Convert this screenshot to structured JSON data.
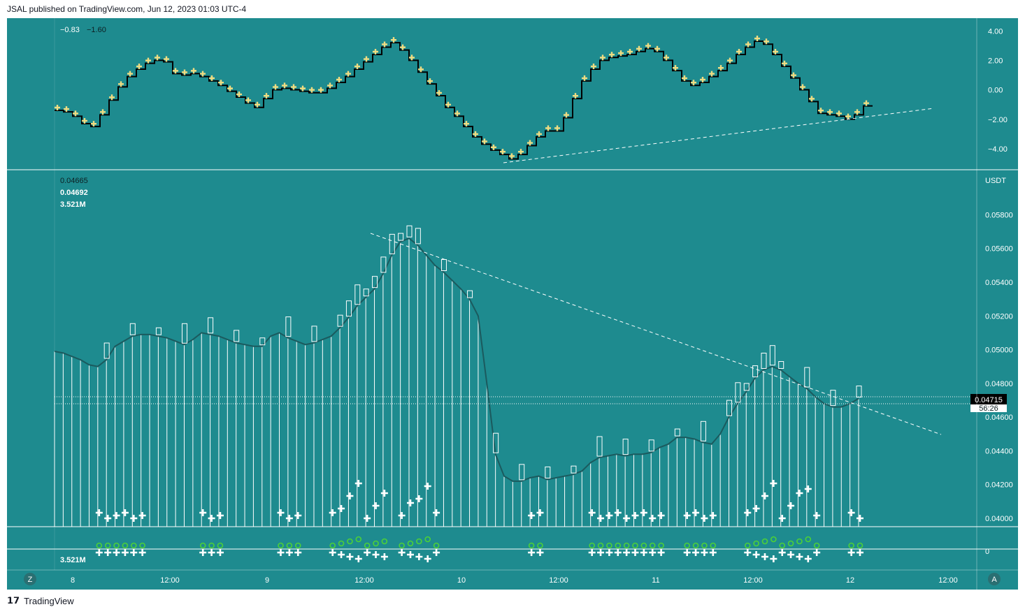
{
  "header": {
    "published": "JSAL published on TradingView.com, Jun 12, 2023 01:03 UTC-4"
  },
  "footer": {
    "brand": "TradingView"
  },
  "top_panel": {
    "values": [
      "−0.83",
      "−1.60"
    ],
    "axis_ticks": [
      "4.00",
      "2.00",
      "0.00",
      "−2.00",
      "−4.00"
    ]
  },
  "main_panel": {
    "legend": [
      "0.04665",
      "0.04692",
      "3.521M"
    ],
    "currency": "USDT",
    "axis_ticks": [
      "0.05800",
      "0.05600",
      "0.05400",
      "0.05200",
      "0.05000",
      "0.04800",
      "0.04600",
      "0.04400",
      "0.04200",
      "0.04000"
    ],
    "last_price": "0.04715",
    "countdown": "56:26"
  },
  "volume_panel": {
    "legend": "3.521M",
    "axis_tick": "0"
  },
  "x_axis": {
    "ticks": [
      "8",
      "12:00",
      "9",
      "12:00",
      "10",
      "12:00",
      "11",
      "12:00",
      "12",
      "12:00"
    ]
  },
  "buttons": {
    "left": "Z",
    "right": "A"
  },
  "colors": {
    "background": "#1e8b8f",
    "candle": "#ffffff",
    "ma_line": "#1b5a5e",
    "cross": "#f0dc82",
    "circle": "#4cd137"
  },
  "chart_data": [
    {
      "type": "line",
      "title": "",
      "ylim": [
        -5,
        4.5
      ],
      "series": [
        {
          "values": [
            -1.2,
            -1.3,
            -1.6,
            -2.1,
            -2.3,
            -1.5,
            -0.5,
            0.4,
            1.1,
            1.6,
            2.0,
            2.2,
            2.1,
            1.3,
            1.2,
            1.3,
            1.1,
            0.8,
            0.5,
            0.1,
            -0.3,
            -0.7,
            -1.0,
            -0.4,
            0.2,
            0.3,
            0.2,
            0.1,
            0.0,
            0.0,
            0.3,
            0.7,
            1.1,
            1.6,
            2.1,
            2.6,
            3.1,
            3.4,
            2.9,
            2.2,
            1.4,
            0.6,
            -0.2,
            -1.0,
            -1.6,
            -2.3,
            -3.0,
            -3.5,
            -3.9,
            -4.2,
            -4.5,
            -4.2,
            -3.6,
            -3.0,
            -2.6,
            -2.6,
            -1.7,
            -0.4,
            0.8,
            1.6,
            2.2,
            2.4,
            2.5,
            2.6,
            2.8,
            3.0,
            2.8,
            2.2,
            1.5,
            0.8,
            0.5,
            0.7,
            1.1,
            1.5,
            2.0,
            2.6,
            3.1,
            3.5,
            3.3,
            2.6,
            1.8,
            1.0,
            0.2,
            -0.6,
            -1.4,
            -1.5,
            -1.6,
            -1.8,
            -1.5,
            -0.9
          ]
        }
      ]
    },
    {
      "type": "bar",
      "title": "",
      "ylim": [
        0.0395,
        0.0598
      ],
      "values": [
        0.0499,
        0.0498,
        0.0496,
        0.0494,
        0.0491,
        0.049,
        0.0494,
        0.0502,
        0.0505,
        0.0508,
        0.0509,
        0.0509,
        0.0508,
        0.0507,
        0.0505,
        0.0503,
        0.0506,
        0.051,
        0.0509,
        0.0508,
        0.0506,
        0.0504,
        0.0503,
        0.0502,
        0.0502,
        0.0508,
        0.051,
        0.0507,
        0.0505,
        0.0503,
        0.0504,
        0.0506,
        0.0508,
        0.0513,
        0.0519,
        0.0526,
        0.0531,
        0.0536,
        0.0545,
        0.0556,
        0.0564,
        0.0566,
        0.0562,
        0.0556,
        0.055,
        0.0546,
        0.0541,
        0.0536,
        0.053,
        0.052,
        0.048,
        0.0438,
        0.0425,
        0.0422,
        0.0422,
        0.0424,
        0.0425,
        0.0423,
        0.0424,
        0.0425,
        0.0426,
        0.0428,
        0.0433,
        0.0436,
        0.0437,
        0.0438,
        0.0437,
        0.0438,
        0.0438,
        0.0439,
        0.0442,
        0.0444,
        0.0448,
        0.0448,
        0.0447,
        0.0445,
        0.0444,
        0.045,
        0.046,
        0.0468,
        0.0475,
        0.0483,
        0.0488,
        0.049,
        0.0488,
        0.0484,
        0.048,
        0.0477,
        0.0472,
        0.0468,
        0.0466,
        0.0466,
        0.0468,
        0.0471
      ]
    }
  ]
}
